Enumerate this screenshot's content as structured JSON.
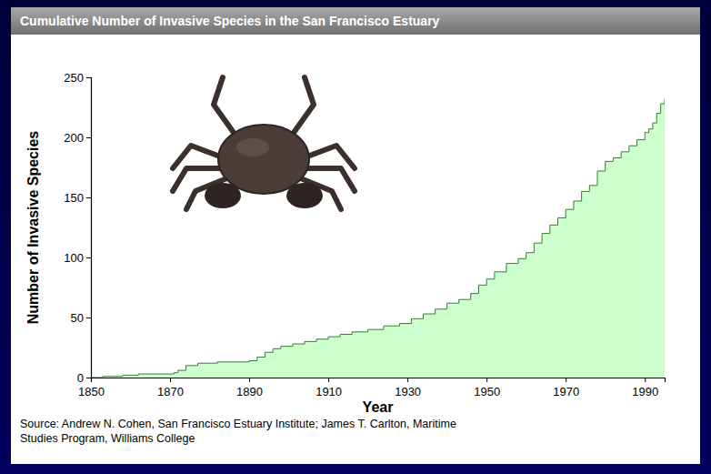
{
  "chart_data": {
    "type": "area",
    "title": "Cumulative Number of Invasive Species in the San Francisco Estuary",
    "x_label": "Year",
    "y_label": "Number of Invasive Species",
    "source": [
      "Source:  Andrew N. Cohen, San Francisco Estuary Institute; James T. Carlton, Maritime",
      "Studies Program, Williams College"
    ],
    "x": [
      1850,
      1853,
      1858,
      1862,
      1871,
      1872,
      1874,
      1877,
      1882,
      1890,
      1892,
      1894,
      1896,
      1898,
      1901,
      1904,
      1907,
      1910,
      1913,
      1916,
      1920,
      1924,
      1928,
      1931,
      1934,
      1937,
      1940,
      1943,
      1946,
      1948,
      1950,
      1952,
      1955,
      1958,
      1960,
      1962,
      1964,
      1966,
      1968,
      1970,
      1972,
      1974,
      1976,
      1978,
      1980,
      1982,
      1984,
      1986,
      1988,
      1990,
      1991,
      1992,
      1993,
      1994,
      1995
    ],
    "series": [
      {
        "name": "Invasive species",
        "color": "#ccffcc",
        "values": [
          0,
          1,
          2,
          3,
          4,
          6,
          10,
          12,
          13,
          14,
          17,
          21,
          24,
          26,
          28,
          30,
          32,
          34,
          36,
          38,
          40,
          43,
          45,
          49,
          53,
          57,
          62,
          65,
          70,
          77,
          82,
          88,
          95,
          99,
          104,
          112,
          120,
          127,
          133,
          140,
          147,
          155,
          160,
          172,
          180,
          183,
          188,
          193,
          198,
          204,
          207,
          212,
          220,
          228,
          232
        ]
      }
    ],
    "xlim": [
      1850,
      1995
    ],
    "ylim": [
      0,
      250
    ],
    "xticks": [
      1850,
      1870,
      1890,
      1910,
      1930,
      1950,
      1970,
      1990
    ],
    "yticks": [
      0,
      50,
      100,
      150,
      200,
      250
    ],
    "grid": false
  }
}
